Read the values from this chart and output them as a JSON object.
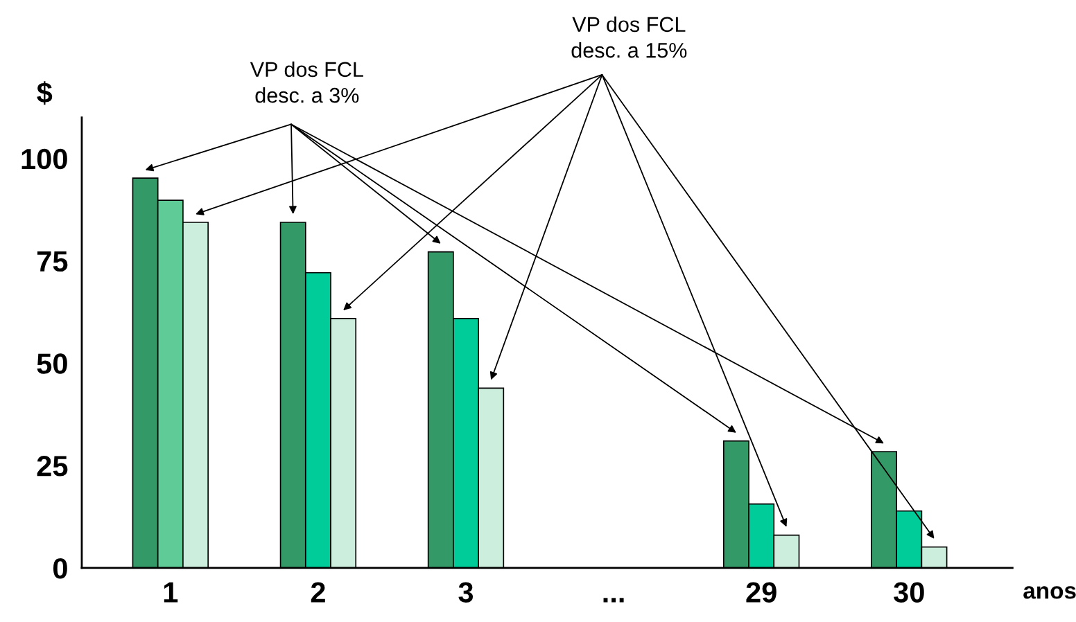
{
  "chart_data": {
    "type": "bar",
    "ylabel": "$",
    "xlabel": "anos",
    "categories": [
      "1",
      "2",
      "3",
      "...",
      "29",
      "30"
    ],
    "series": [
      {
        "color": "#339966",
        "values": [
          95.2,
          84.4,
          77.2,
          null,
          31,
          28.4
        ]
      },
      {
        "color": "#00cc99",
        "colors": [
          "#5fcb96",
          "#00cc99",
          "#00cc99",
          "#00cc99",
          "#00cc99",
          "#00cc99"
        ],
        "values": [
          89.8,
          72.1,
          60.9,
          null,
          15.6,
          13.9
        ]
      },
      {
        "color": "#cceedd",
        "values": [
          84.4,
          60.9,
          43.9,
          null,
          8,
          5.1
        ]
      }
    ],
    "ylim": [
      0,
      110
    ],
    "yticks": [
      0,
      25,
      50,
      75,
      100
    ],
    "annotations": [
      "VP dos FCL\ndesc. a 3%",
      "VP dos FCL\ndesc. a 15%"
    ],
    "grid": false,
    "legend": false
  }
}
